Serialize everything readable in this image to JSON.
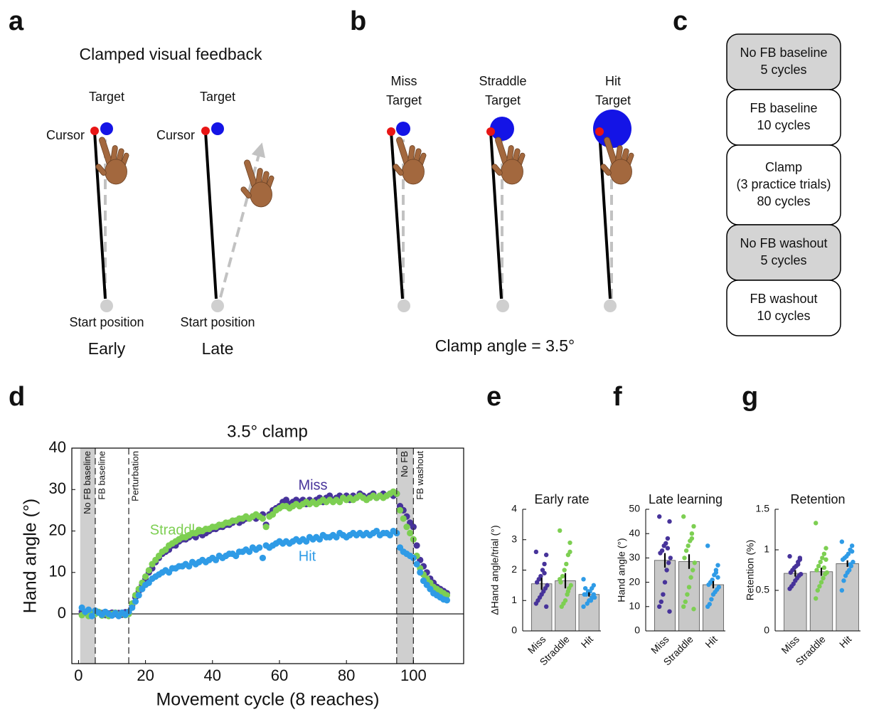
{
  "panel_a": {
    "label": "a",
    "title": "Clamped visual feedback",
    "conditions": [
      {
        "target": "Target",
        "cursor": "Cursor",
        "start": "Start position",
        "caption": "Early"
      },
      {
        "target": "Target",
        "cursor": "Cursor",
        "start": "Start position",
        "caption": "Late"
      }
    ]
  },
  "panel_b": {
    "label": "b",
    "targets": [
      [
        "Miss",
        "Target"
      ],
      [
        "Straddle",
        "Target"
      ],
      [
        "Hit",
        "Target"
      ]
    ],
    "caption": "Clamp angle = 3.5°"
  },
  "panel_c": {
    "label": "c",
    "phases": [
      {
        "lines": [
          "No FB baseline",
          "5 cycles"
        ],
        "shaded": true
      },
      {
        "lines": [
          "FB baseline",
          "10 cycles"
        ],
        "shaded": false
      },
      {
        "lines": [
          "Clamp",
          "(3 practice trials)",
          "80 cycles"
        ],
        "shaded": false
      },
      {
        "lines": [
          "No FB washout",
          "5 cycles"
        ],
        "shaded": true
      },
      {
        "lines": [
          "FB washout",
          "10 cycles"
        ],
        "shaded": false
      }
    ]
  },
  "chart_data": [
    {
      "type": "scatter",
      "panel_label": "d",
      "title": "3.5° clamp",
      "x_label": "Movement cycle (8 reaches)",
      "y_label": "Hand angle (°)",
      "xlim": [
        -2,
        115
      ],
      "ylim": [
        -12,
        40
      ],
      "xticks": [
        0,
        20,
        40,
        60,
        80,
        100
      ],
      "yticks": [
        0,
        10,
        20,
        30,
        40
      ],
      "zero_line": true,
      "box": true,
      "phases": [
        {
          "start": 0.5,
          "end": 5,
          "label": "No FB baseline",
          "shaded": true
        },
        {
          "start": 5,
          "end": 15,
          "label": "FB baseline",
          "shaded": false
        },
        {
          "start": 15,
          "end": 95,
          "label": "Perturbation",
          "shaded": false
        },
        {
          "start": 95,
          "end": 100,
          "label": "No FB",
          "shaded": true
        },
        {
          "start": 100,
          "end": 111,
          "label": "FB washout",
          "shaded": false
        }
      ],
      "x": [
        1,
        2,
        3,
        4,
        5,
        6,
        7,
        8,
        9,
        10,
        11,
        12,
        13,
        14,
        15,
        16,
        17,
        18,
        19,
        20,
        21,
        22,
        23,
        24,
        25,
        26,
        27,
        28,
        29,
        30,
        31,
        32,
        33,
        34,
        35,
        36,
        37,
        38,
        39,
        40,
        41,
        42,
        43,
        44,
        45,
        46,
        47,
        48,
        49,
        50,
        51,
        52,
        53,
        54,
        55,
        56,
        57,
        58,
        59,
        60,
        61,
        62,
        63,
        64,
        65,
        66,
        67,
        68,
        69,
        70,
        71,
        72,
        73,
        74,
        75,
        76,
        77,
        78,
        79,
        80,
        81,
        82,
        83,
        84,
        85,
        86,
        87,
        88,
        89,
        90,
        91,
        92,
        93,
        94,
        95,
        96,
        97,
        98,
        99,
        100,
        101,
        102,
        103,
        104,
        105,
        106,
        107,
        108,
        109,
        110
      ],
      "series": [
        {
          "name": "Miss",
          "color": "#47339a",
          "values": [
            0.5,
            0.3,
            0.8,
            0.2,
            0.6,
            0.4,
            0.2,
            -0.3,
            0.1,
            0.3,
            0.0,
            0.2,
            -0.2,
            0.4,
            0.3,
            2.0,
            4.0,
            5.5,
            7.0,
            8.5,
            10.0,
            11.0,
            12.5,
            13.5,
            14.5,
            15.0,
            15.5,
            16.5,
            16.5,
            17.5,
            18.0,
            18.0,
            18.5,
            19.0,
            18.5,
            19.5,
            19.0,
            19.5,
            20.0,
            20.5,
            20.5,
            21.0,
            21.0,
            21.5,
            21.5,
            22.0,
            22.5,
            22.0,
            22.5,
            23.0,
            23.0,
            23.5,
            23.0,
            23.5,
            24.0,
            21.5,
            24.0,
            25.0,
            25.5,
            26.0,
            27.0,
            27.5,
            26.5,
            27.0,
            27.5,
            27.0,
            27.5,
            26.5,
            27.5,
            27.0,
            27.5,
            28.0,
            27.0,
            28.0,
            28.5,
            27.5,
            28.0,
            28.5,
            28.0,
            28.5,
            27.5,
            28.5,
            28.0,
            29.0,
            28.5,
            28.0,
            28.5,
            29.0,
            28.0,
            28.5,
            29.0,
            28.5,
            29.0,
            28.5,
            29.0,
            26.0,
            25.0,
            23.5,
            22.0,
            21.0,
            16.5,
            13.0,
            11.5,
            10.0,
            8.5,
            7.5,
            6.5,
            6.0,
            5.5,
            5.0
          ]
        },
        {
          "name": "Straddle",
          "color": "#7dcf52",
          "values": [
            -0.3,
            0.5,
            -0.5,
            0.3,
            0.0,
            0.5,
            -0.4,
            0.2,
            -0.5,
            0.0,
            0.3,
            -0.2,
            0.1,
            -0.3,
            0.0,
            2.5,
            4.5,
            6.0,
            7.5,
            9.0,
            10.5,
            12.0,
            13.0,
            14.0,
            15.0,
            15.5,
            16.5,
            17.0,
            17.5,
            18.0,
            18.5,
            18.5,
            19.0,
            19.5,
            19.5,
            20.0,
            20.0,
            20.5,
            20.5,
            21.0,
            21.0,
            21.5,
            21.5,
            22.0,
            22.0,
            22.5,
            22.5,
            23.0,
            23.0,
            23.5,
            23.0,
            23.5,
            24.0,
            23.5,
            23.0,
            21.0,
            23.5,
            24.0,
            25.0,
            25.5,
            26.0,
            26.0,
            25.5,
            26.0,
            26.5,
            26.0,
            26.5,
            27.0,
            26.5,
            27.0,
            26.5,
            27.0,
            27.5,
            27.0,
            27.5,
            27.0,
            27.5,
            27.0,
            28.0,
            27.5,
            28.0,
            27.5,
            28.0,
            28.5,
            28.0,
            27.5,
            28.0,
            28.5,
            28.0,
            28.5,
            28.0,
            28.5,
            29.0,
            29.5,
            29.0,
            25.0,
            23.0,
            21.0,
            19.5,
            18.0,
            14.0,
            11.0,
            9.5,
            8.5,
            7.5,
            6.5,
            6.0,
            5.5,
            5.0,
            4.5
          ]
        },
        {
          "name": "Hit",
          "color": "#2f9be6",
          "values": [
            1.5,
            0.5,
            1.0,
            -0.5,
            0.8,
            0.3,
            -0.2,
            0.5,
            0.0,
            -0.4,
            0.2,
            -0.5,
            0.3,
            -0.2,
            0.5,
            1.5,
            3.0,
            4.5,
            6.0,
            7.0,
            7.5,
            8.5,
            9.0,
            9.5,
            10.0,
            10.5,
            10.0,
            11.0,
            11.0,
            11.5,
            11.5,
            12.0,
            11.5,
            12.5,
            12.0,
            12.5,
            13.0,
            12.5,
            13.0,
            13.5,
            13.0,
            14.0,
            13.5,
            14.0,
            14.5,
            14.5,
            14.0,
            15.0,
            15.0,
            15.5,
            15.0,
            16.0,
            15.5,
            16.0,
            13.5,
            16.5,
            16.0,
            16.5,
            17.0,
            17.5,
            17.0,
            17.5,
            17.0,
            17.5,
            18.0,
            17.5,
            18.0,
            17.5,
            18.5,
            18.0,
            18.5,
            18.0,
            19.0,
            18.5,
            18.5,
            19.0,
            18.5,
            19.5,
            19.0,
            18.5,
            19.0,
            19.5,
            19.0,
            19.5,
            19.0,
            19.5,
            19.0,
            19.5,
            20.0,
            19.0,
            19.5,
            19.5,
            19.0,
            20.0,
            19.5,
            16.0,
            15.0,
            14.5,
            14.0,
            13.5,
            12.0,
            10.0,
            8.0,
            7.0,
            6.0,
            5.0,
            4.5,
            4.0,
            3.5,
            3.3
          ]
        }
      ]
    },
    {
      "type": "bar",
      "panel_label": "e",
      "title": "Early rate",
      "y_label": "ΔHand angle/trial (°)",
      "ylim": [
        0,
        4
      ],
      "yticks": [
        0,
        1,
        2,
        3,
        4
      ],
      "categories": [
        "Miss",
        "Straddle",
        "Hit"
      ],
      "bar_color": "#c8c8c8",
      "colors": [
        "#47339a",
        "#7dcf52",
        "#2f9be6"
      ],
      "values": [
        1.55,
        1.65,
        1.2
      ],
      "errors": [
        0.2,
        0.25,
        0.07
      ],
      "points": [
        [
          2.6,
          2.5,
          2.2,
          2.0,
          1.8,
          1.7,
          1.6,
          1.5,
          1.4,
          1.3,
          1.2,
          1.1,
          1.0,
          0.9,
          0.8,
          1.9
        ],
        [
          3.3,
          2.9,
          2.5,
          2.2,
          2.0,
          1.8,
          1.6,
          1.5,
          1.4,
          1.2,
          1.0,
          0.9,
          0.8,
          1.7,
          2.6,
          1.3
        ],
        [
          1.7,
          1.5,
          1.4,
          1.3,
          1.3,
          1.2,
          1.2,
          1.1,
          1.1,
          1.0,
          1.0,
          0.9,
          1.4,
          0.8,
          1.2,
          1.1
        ]
      ]
    },
    {
      "type": "bar",
      "panel_label": "f",
      "title": "Late learning",
      "y_label": "Hand angle (°)",
      "ylim": [
        0,
        50
      ],
      "yticks": [
        0,
        10,
        20,
        30,
        40,
        50
      ],
      "categories": [
        "Miss",
        "Straddle",
        "Hit"
      ],
      "bar_color": "#c8c8c8",
      "colors": [
        "#47339a",
        "#7dcf52",
        "#2f9be6"
      ],
      "values": [
        29,
        28.5,
        19
      ],
      "errors": [
        3,
        3,
        1.5
      ],
      "points": [
        [
          47,
          45,
          38,
          36,
          35,
          33,
          32,
          30,
          28,
          25,
          20,
          15,
          12,
          10,
          8,
          34
        ],
        [
          47,
          43,
          40,
          37,
          35,
          33,
          30,
          28,
          25,
          22,
          18,
          15,
          12,
          10,
          9,
          38
        ],
        [
          35,
          27,
          25,
          23,
          21,
          20,
          19,
          18,
          17,
          16,
          15,
          13,
          11,
          10,
          22,
          24
        ]
      ]
    },
    {
      "type": "bar",
      "panel_label": "g",
      "title": "Retention",
      "y_label": "Retention (%)",
      "ylim": [
        0,
        1.5
      ],
      "yticks": [
        0,
        0.5,
        1,
        1.5
      ],
      "categories": [
        "Miss",
        "Straddle",
        "Hit"
      ],
      "bar_color": "#c8c8c8",
      "colors": [
        "#47339a",
        "#7dcf52",
        "#2f9be6"
      ],
      "values": [
        0.71,
        0.73,
        0.83
      ],
      "errors": [
        0.04,
        0.05,
        0.04
      ],
      "points": [
        [
          0.92,
          0.88,
          0.85,
          0.8,
          0.78,
          0.75,
          0.72,
          0.7,
          0.68,
          0.65,
          0.62,
          0.58,
          0.55,
          0.52,
          0.9,
          0.82
        ],
        [
          1.33,
          1.02,
          0.95,
          0.9,
          0.85,
          0.8,
          0.75,
          0.72,
          0.7,
          0.65,
          0.6,
          0.55,
          0.5,
          0.4,
          0.88,
          0.78
        ],
        [
          1.1,
          1.05,
          1.0,
          0.95,
          0.92,
          0.9,
          0.88,
          0.85,
          0.8,
          0.75,
          0.72,
          0.68,
          0.62,
          0.5,
          0.98,
          0.82
        ]
      ]
    }
  ]
}
